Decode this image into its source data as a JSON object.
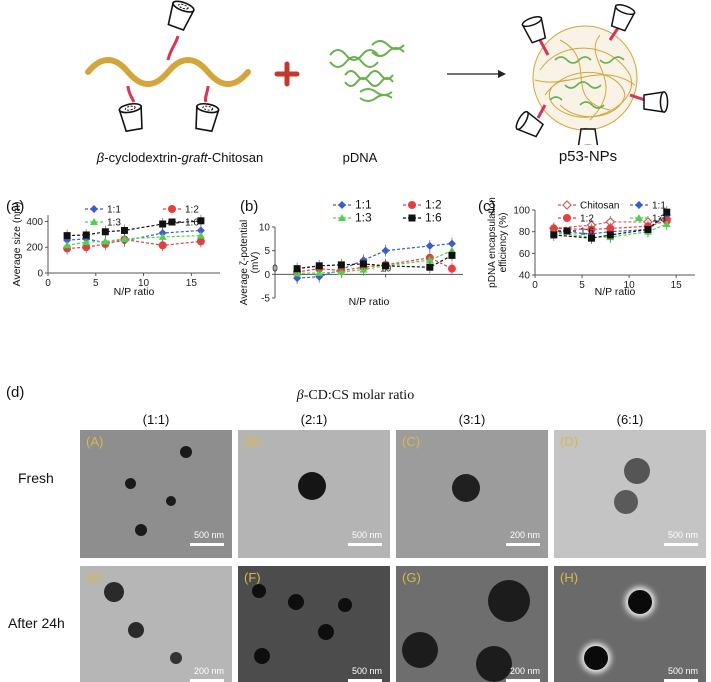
{
  "schematic": {
    "polymer_prefix": "β",
    "polymer_mid": "-cyclodextrin-",
    "polymer_graft": "graft",
    "polymer_suffix": "-Chitosan",
    "dna_label": "pDNA",
    "nps_label": "p53-NPs"
  },
  "colors": {
    "chitosan": "#d4a53a",
    "linker": "#d9335a",
    "dna": "#6ab04c",
    "plus": "#c0392b",
    "s1_1": "#3b5bd6",
    "s1_2": "#e83e3e",
    "s1_3": "#4ed24e",
    "s1_6": "#111111",
    "chitosan_series": "#c06060"
  },
  "panel_a": {
    "letter": "(a)",
    "chart_data": {
      "type": "line",
      "ylabel": "Average size (nm)",
      "xlabel": "N/P ratio",
      "xlim": [
        0,
        18
      ],
      "ylim": [
        0,
        450
      ],
      "xticks": [
        "0",
        "5",
        "10",
        "15"
      ],
      "yticks": [
        "0",
        "200",
        "400"
      ],
      "series": [
        {
          "name": "1:1",
          "x": [
            2,
            4,
            6,
            8,
            12,
            16
          ],
          "values": [
            255,
            265,
            235,
            250,
            310,
            330
          ]
        },
        {
          "name": "1:2",
          "x": [
            2,
            4,
            6,
            8,
            12,
            16
          ],
          "values": [
            190,
            200,
            225,
            260,
            215,
            245
          ]
        },
        {
          "name": "1:3",
          "x": [
            2,
            4,
            6,
            8,
            12,
            16
          ],
          "values": [
            215,
            240,
            245,
            265,
            280,
            290
          ]
        },
        {
          "name": "1:6",
          "x": [
            2,
            4,
            6,
            8,
            12,
            16
          ],
          "values": [
            290,
            295,
            320,
            330,
            380,
            405
          ]
        }
      ]
    }
  },
  "panel_b": {
    "letter": "(b)",
    "chart_data": {
      "type": "line",
      "ylabel_l1": "Average ζ-potential",
      "ylabel_l2": "(mV)",
      "xlabel": "N/P ratio",
      "xlim": [
        0,
        17
      ],
      "ylim": [
        -5,
        10
      ],
      "xticks": [
        "0",
        "10"
      ],
      "yticks": [
        "-5",
        "0",
        "5",
        "10"
      ],
      "series": [
        {
          "name": "1:1",
          "x": [
            2,
            4,
            6,
            8,
            10,
            14,
            16
          ],
          "values": [
            -0.8,
            -0.5,
            1.0,
            3.0,
            5.0,
            6.0,
            6.5
          ]
        },
        {
          "name": "1:2",
          "x": [
            2,
            4,
            6,
            8,
            10,
            14,
            16
          ],
          "values": [
            0.5,
            1.2,
            0.8,
            1.5,
            2.0,
            3.5,
            1.2
          ]
        },
        {
          "name": "1:3",
          "x": [
            2,
            4,
            6,
            8,
            10,
            14,
            16
          ],
          "values": [
            0.2,
            0.3,
            0.5,
            1.0,
            1.8,
            3.0,
            5.0
          ]
        },
        {
          "name": "1:6",
          "x": [
            2,
            4,
            6,
            8,
            10,
            14,
            16
          ],
          "values": [
            1.2,
            1.8,
            2.0,
            2.2,
            1.8,
            1.5,
            4.0
          ]
        }
      ]
    }
  },
  "panel_c": {
    "letter": "(c)",
    "chart_data": {
      "type": "line",
      "ylabel_l1": "pDNA encapsulation",
      "ylabel_l2": "efficiency (%)",
      "xlabel": "N/P ratio",
      "xlim": [
        0,
        17
      ],
      "ylim": [
        40,
        100
      ],
      "xticks": [
        "0",
        "5",
        "10",
        "15"
      ],
      "yticks": [
        "40",
        "60",
        "80",
        "100"
      ],
      "series": [
        {
          "name": "Chitosan",
          "x": [
            2,
            6,
            8,
            12,
            14
          ],
          "values": [
            83,
            86,
            89,
            89,
            92
          ]
        },
        {
          "name": "1:1",
          "x": [
            2,
            6,
            8,
            12,
            14
          ],
          "values": [
            80,
            78,
            80,
            82,
            95
          ]
        },
        {
          "name": "1:2",
          "x": [
            2,
            6,
            8,
            12,
            14
          ],
          "values": [
            83,
            82,
            83,
            85,
            90
          ]
        },
        {
          "name": "1:3",
          "x": [
            2,
            6,
            8,
            12,
            14
          ],
          "values": [
            79,
            75,
            75,
            80,
            87
          ]
        },
        {
          "name": "1:6",
          "x": [
            2,
            6,
            8,
            12,
            14
          ],
          "values": [
            77,
            74,
            77,
            82,
            98
          ]
        }
      ]
    }
  },
  "panel_d": {
    "letter": "(d)",
    "title_prefix": "β",
    "title_rest": "-CD:CS molar ratio",
    "columns": [
      "(1:1)",
      "(2:1)",
      "(3:1)",
      "(6:1)"
    ],
    "rows": [
      "Fresh",
      "After 24h"
    ],
    "images": [
      {
        "tag": "(A)",
        "scale": "500 nm",
        "tone": "#8e8e8e"
      },
      {
        "tag": "(B)",
        "scale": "500 nm",
        "tone": "#b4b4b4"
      },
      {
        "tag": "(C)",
        "scale": "200 nm",
        "tone": "#9c9c9c"
      },
      {
        "tag": "(D)",
        "scale": "500 nm",
        "tone": "#c4c4c4"
      },
      {
        "tag": "(E)",
        "scale": "200 nm",
        "tone": "#b6b6b6"
      },
      {
        "tag": "(F)",
        "scale": "500 nm",
        "tone": "#4c4c4c"
      },
      {
        "tag": "(G)",
        "scale": "200 nm",
        "tone": "#6e6e6e"
      },
      {
        "tag": "(H)",
        "scale": "500 nm",
        "tone": "#6a6a6a"
      }
    ]
  }
}
